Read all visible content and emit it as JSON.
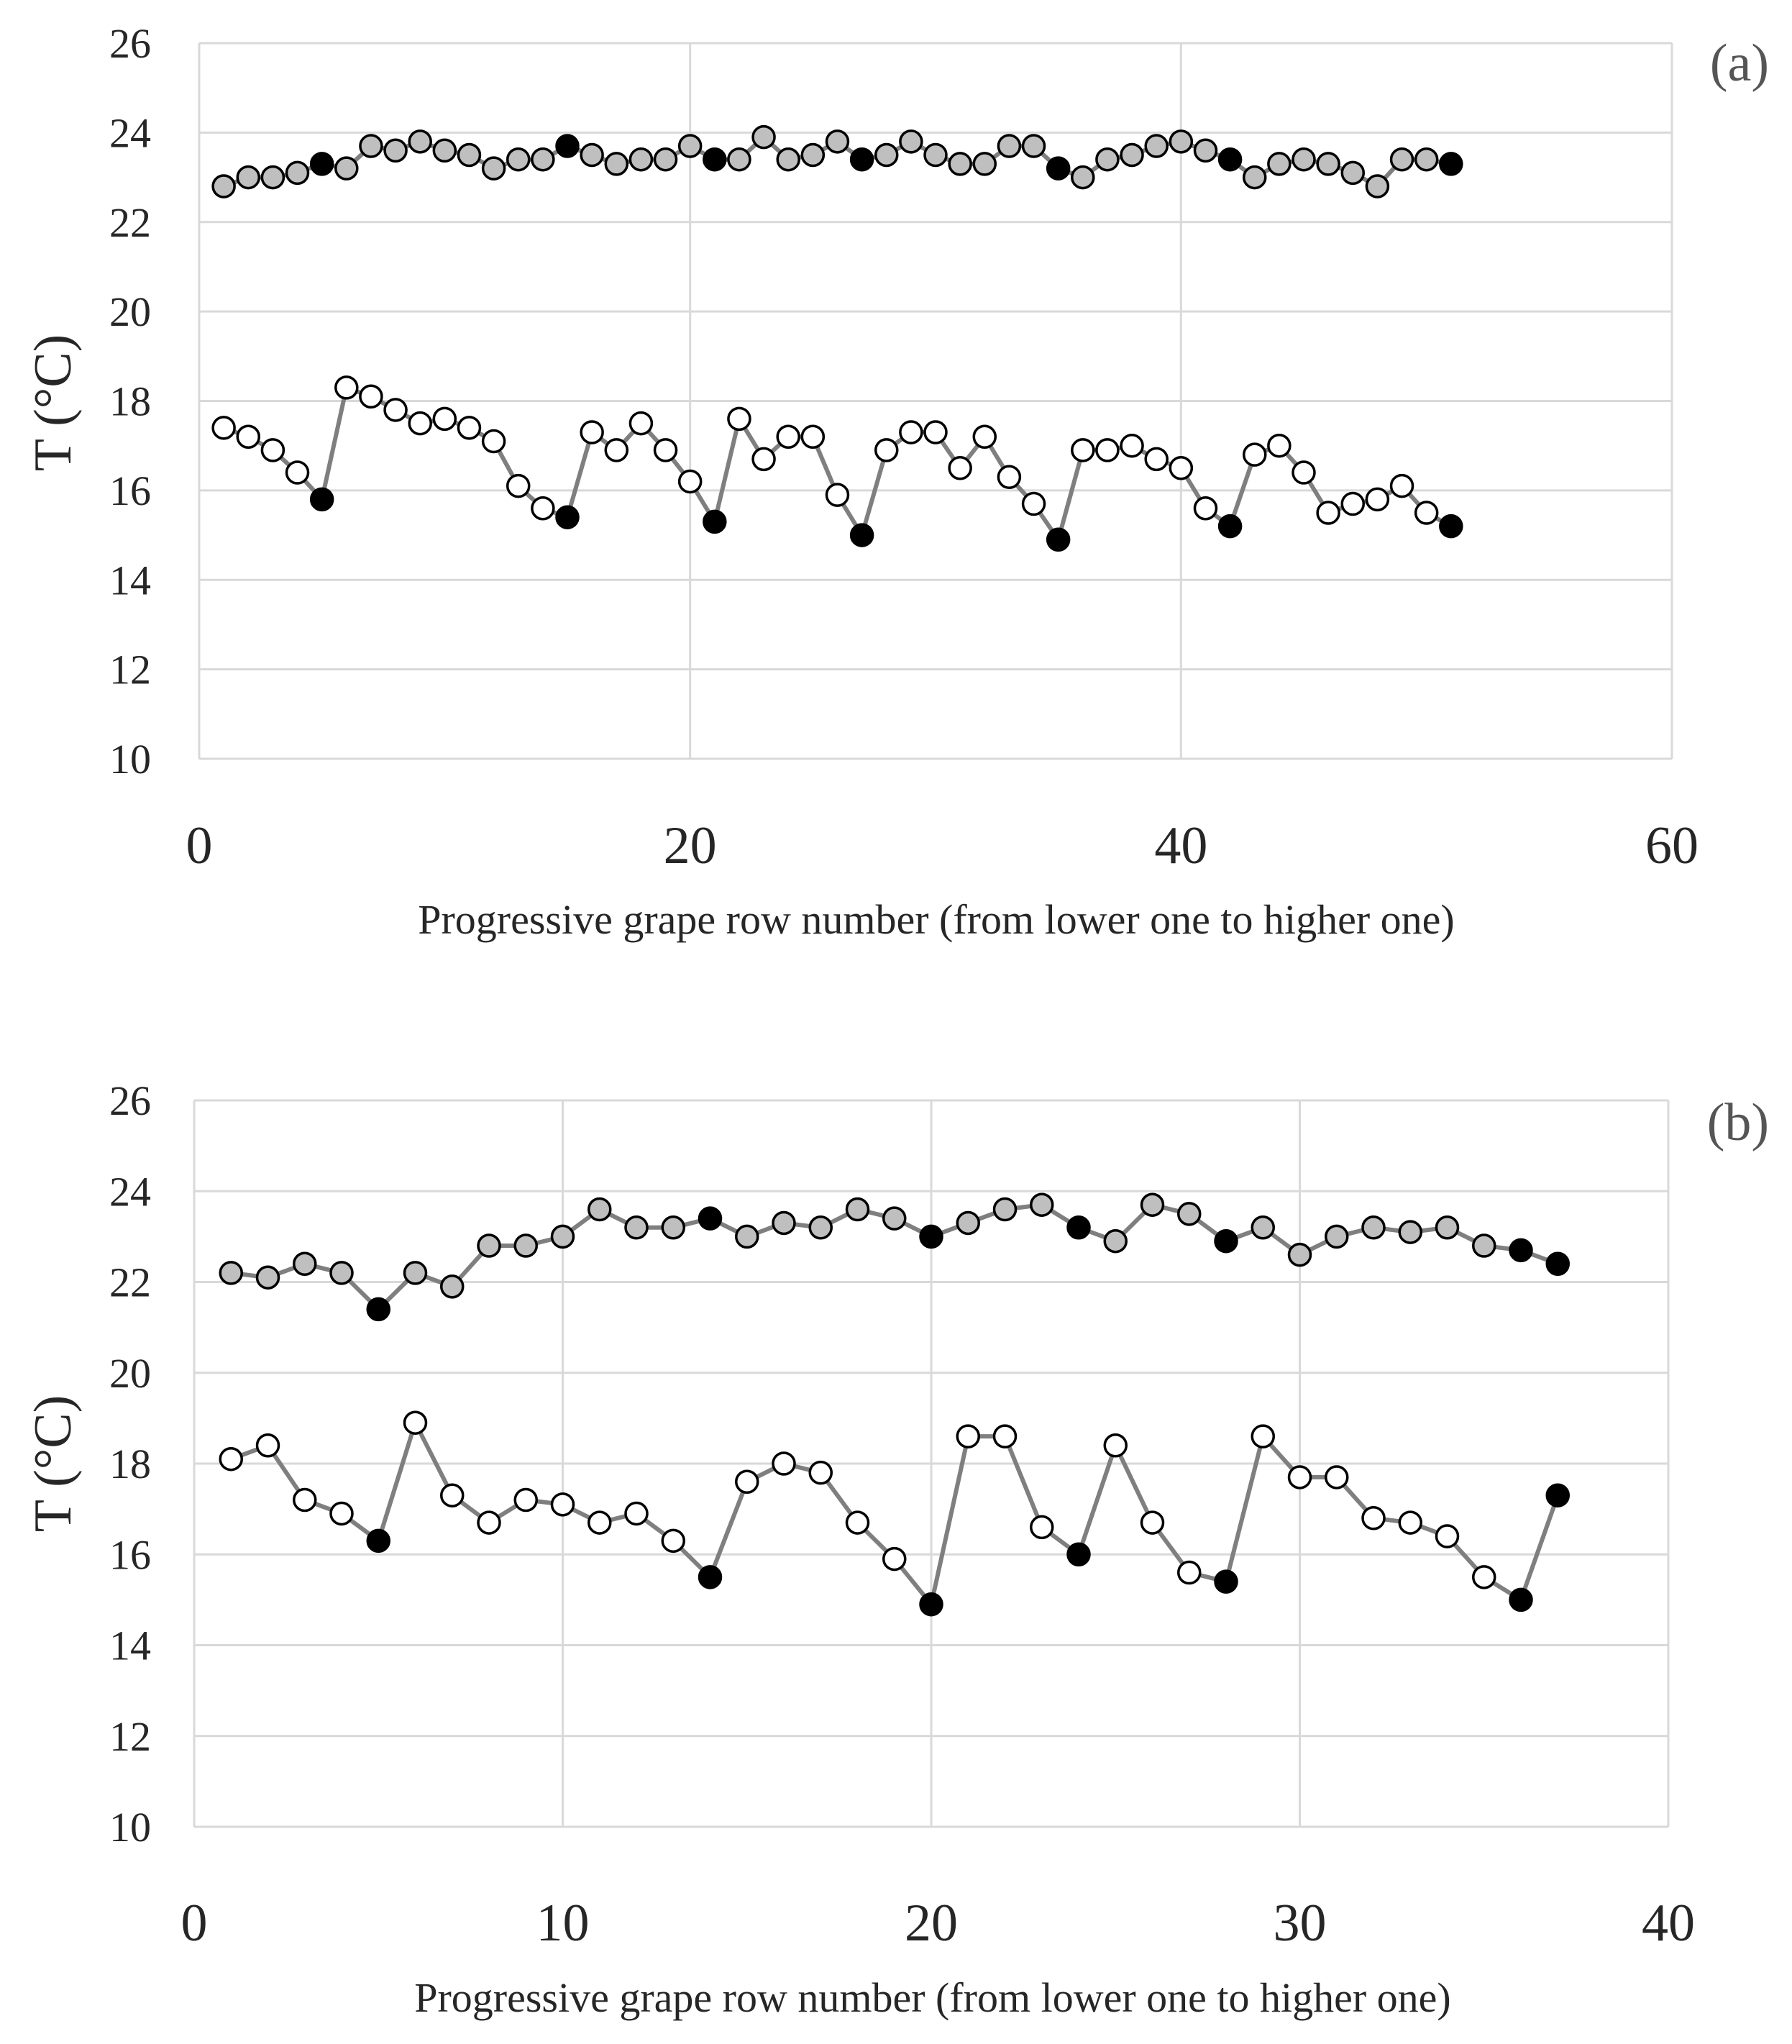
{
  "colors": {
    "gridline": "#d9d9d9",
    "series_line": "#7f7f7f",
    "marker_edge": "#000000",
    "marker_filled_black": "#000000",
    "marker_grey": "#bfbfbf",
    "marker_white": "#ffffff"
  },
  "chart_data": [
    {
      "type": "line",
      "panel_label": "(a)",
      "xlabel": "Progressive grape row number (from lower one to higher one)",
      "ylabel": "T (°C)",
      "xlim": [
        0,
        60
      ],
      "ylim": [
        10,
        26
      ],
      "xticks": [
        0,
        20,
        40,
        60
      ],
      "xtick_labels": [
        "0",
        "20",
        "40",
        "60"
      ],
      "yticks": [
        10,
        12,
        14,
        16,
        18,
        20,
        22,
        24,
        26
      ],
      "ytick_labels": [
        "10",
        "12",
        "14",
        "16",
        "18",
        "20",
        "22",
        "24",
        "26"
      ],
      "grid": true,
      "series": [
        {
          "name": "upper",
          "marker_fill": "grey",
          "x": [
            1,
            2,
            3,
            4,
            5,
            6,
            7,
            8,
            9,
            10,
            11,
            12,
            13,
            14,
            15,
            16,
            17,
            18,
            19,
            20,
            21,
            22,
            23,
            24,
            25,
            26,
            27,
            28,
            29,
            30,
            31,
            32,
            33,
            34,
            35,
            36,
            37,
            38,
            39,
            40,
            41,
            42,
            43,
            44,
            45,
            46,
            47,
            48,
            49,
            50,
            51
          ],
          "y": [
            22.8,
            23.0,
            23.0,
            23.1,
            23.3,
            23.2,
            23.7,
            23.6,
            23.8,
            23.6,
            23.5,
            23.2,
            23.4,
            23.4,
            23.7,
            23.5,
            23.3,
            23.4,
            23.4,
            23.7,
            23.4,
            23.4,
            23.9,
            23.4,
            23.5,
            23.8,
            23.4,
            23.5,
            23.8,
            23.5,
            23.3,
            23.3,
            23.7,
            23.7,
            23.2,
            23.0,
            23.4,
            23.5,
            23.7,
            23.8,
            23.6,
            23.4,
            23.0,
            23.3,
            23.4,
            23.3,
            23.1,
            22.8,
            23.4,
            23.4,
            23.3
          ],
          "black_marker_x": [
            5,
            15,
            21,
            27,
            35,
            42,
            51
          ]
        },
        {
          "name": "lower",
          "marker_fill": "white",
          "x": [
            1,
            2,
            3,
            4,
            5,
            6,
            7,
            8,
            9,
            10,
            11,
            12,
            13,
            14,
            15,
            16,
            17,
            18,
            19,
            20,
            21,
            22,
            23,
            24,
            25,
            26,
            27,
            28,
            29,
            30,
            31,
            32,
            33,
            34,
            35,
            36,
            37,
            38,
            39,
            40,
            41,
            42,
            43,
            44,
            45,
            46,
            47,
            48,
            49,
            50,
            51
          ],
          "y": [
            17.4,
            17.2,
            16.9,
            16.4,
            15.8,
            18.3,
            18.1,
            17.8,
            17.5,
            17.6,
            17.4,
            17.1,
            16.1,
            15.6,
            15.4,
            17.3,
            16.9,
            17.5,
            16.9,
            16.2,
            15.3,
            17.6,
            16.7,
            17.2,
            17.2,
            15.9,
            15.0,
            16.9,
            17.3,
            17.3,
            16.5,
            17.2,
            16.3,
            15.7,
            14.9,
            16.9,
            16.9,
            17.0,
            16.7,
            16.5,
            15.6,
            15.2,
            16.8,
            17.0,
            16.4,
            15.5,
            15.7,
            15.8,
            16.1,
            15.5,
            15.2
          ],
          "black_marker_x": [
            5,
            15,
            21,
            27,
            35,
            42,
            51
          ]
        }
      ]
    },
    {
      "type": "line",
      "panel_label": "(b)",
      "xlabel": "Progressive grape row number (from lower one to higher one)",
      "ylabel": "T (°C)",
      "xlim": [
        0,
        40
      ],
      "ylim": [
        10,
        26
      ],
      "xticks": [
        0,
        10,
        20,
        30,
        40
      ],
      "xtick_labels": [
        "0",
        "10",
        "20",
        "30",
        "40"
      ],
      "yticks": [
        10,
        12,
        14,
        16,
        18,
        20,
        22,
        24,
        26
      ],
      "ytick_labels": [
        "10",
        "12",
        "14",
        "16",
        "18",
        "20",
        "22",
        "24",
        "26"
      ],
      "grid": true,
      "series": [
        {
          "name": "upper",
          "marker_fill": "grey",
          "x": [
            1,
            2,
            3,
            4,
            5,
            6,
            7,
            8,
            9,
            10,
            11,
            12,
            13,
            14,
            15,
            16,
            17,
            18,
            19,
            20,
            21,
            22,
            23,
            24,
            25,
            26,
            27,
            28,
            29,
            30,
            31,
            32,
            33,
            34,
            35,
            36,
            37
          ],
          "y": [
            22.2,
            22.1,
            22.4,
            22.2,
            21.4,
            22.2,
            21.9,
            22.8,
            22.8,
            23.0,
            23.6,
            23.2,
            23.2,
            23.4,
            23.0,
            23.3,
            23.2,
            23.6,
            23.4,
            23.0,
            23.3,
            23.6,
            23.7,
            23.2,
            22.9,
            23.7,
            23.5,
            22.9,
            23.2,
            22.6,
            23.0,
            23.2,
            23.1,
            23.2,
            22.8,
            22.7,
            22.4
          ],
          "black_marker_x": [
            5,
            14,
            20,
            24,
            28,
            36,
            37
          ]
        },
        {
          "name": "lower",
          "marker_fill": "white",
          "x": [
            1,
            2,
            3,
            4,
            5,
            6,
            7,
            8,
            9,
            10,
            11,
            12,
            13,
            14,
            15,
            16,
            17,
            18,
            19,
            20,
            21,
            22,
            23,
            24,
            25,
            26,
            27,
            28,
            29,
            30,
            31,
            32,
            33,
            34,
            35,
            36,
            37
          ],
          "y": [
            18.1,
            18.4,
            17.2,
            16.9,
            16.3,
            18.9,
            17.3,
            16.7,
            17.2,
            17.1,
            16.7,
            16.9,
            16.3,
            15.5,
            17.6,
            18.0,
            17.8,
            16.7,
            15.9,
            14.9,
            18.6,
            18.6,
            16.6,
            16.0,
            18.4,
            16.7,
            15.6,
            15.4,
            18.6,
            17.7,
            17.7,
            16.8,
            16.7,
            16.4,
            15.5,
            15.0,
            17.3
          ],
          "black_marker_x": [
            5,
            14,
            20,
            24,
            28,
            36,
            37
          ]
        }
      ]
    }
  ]
}
